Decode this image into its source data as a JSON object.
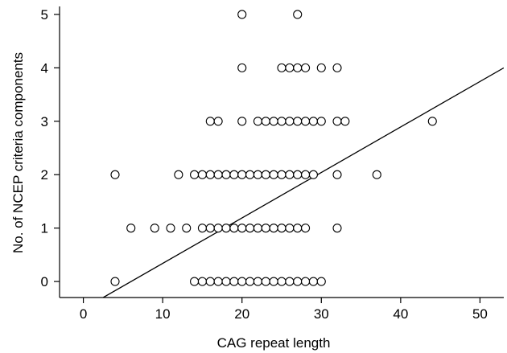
{
  "chart_data": {
    "type": "scatter",
    "title": "",
    "xlabel": "CAG repeat length",
    "ylabel": "No. of NCEP criteria components",
    "xlim": [
      -3,
      53
    ],
    "ylim": [
      -0.3,
      5.15
    ],
    "xticks": [
      0,
      10,
      20,
      30,
      40,
      50
    ],
    "yticks": [
      0,
      1,
      2,
      3,
      4,
      5
    ],
    "grid": false,
    "legend": "none",
    "marker": "open-circle",
    "points": [
      [
        4,
        0
      ],
      [
        14,
        0
      ],
      [
        15,
        0
      ],
      [
        16,
        0
      ],
      [
        17,
        0
      ],
      [
        18,
        0
      ],
      [
        19,
        0
      ],
      [
        20,
        0
      ],
      [
        21,
        0
      ],
      [
        22,
        0
      ],
      [
        23,
        0
      ],
      [
        24,
        0
      ],
      [
        25,
        0
      ],
      [
        26,
        0
      ],
      [
        27,
        0
      ],
      [
        28,
        0
      ],
      [
        29,
        0
      ],
      [
        30,
        0
      ],
      [
        6,
        1
      ],
      [
        9,
        1
      ],
      [
        11,
        1
      ],
      [
        13,
        1
      ],
      [
        15,
        1
      ],
      [
        16,
        1
      ],
      [
        17,
        1
      ],
      [
        18,
        1
      ],
      [
        19,
        1
      ],
      [
        20,
        1
      ],
      [
        21,
        1
      ],
      [
        22,
        1
      ],
      [
        23,
        1
      ],
      [
        24,
        1
      ],
      [
        25,
        1
      ],
      [
        26,
        1
      ],
      [
        27,
        1
      ],
      [
        28,
        1
      ],
      [
        32,
        1
      ],
      [
        4,
        2
      ],
      [
        12,
        2
      ],
      [
        14,
        2
      ],
      [
        15,
        2
      ],
      [
        16,
        2
      ],
      [
        17,
        2
      ],
      [
        18,
        2
      ],
      [
        19,
        2
      ],
      [
        20,
        2
      ],
      [
        21,
        2
      ],
      [
        22,
        2
      ],
      [
        23,
        2
      ],
      [
        24,
        2
      ],
      [
        25,
        2
      ],
      [
        26,
        2
      ],
      [
        27,
        2
      ],
      [
        28,
        2
      ],
      [
        29,
        2
      ],
      [
        32,
        2
      ],
      [
        37,
        2
      ],
      [
        16,
        3
      ],
      [
        17,
        3
      ],
      [
        20,
        3
      ],
      [
        22,
        3
      ],
      [
        23,
        3
      ],
      [
        24,
        3
      ],
      [
        25,
        3
      ],
      [
        26,
        3
      ],
      [
        27,
        3
      ],
      [
        28,
        3
      ],
      [
        29,
        3
      ],
      [
        30,
        3
      ],
      [
        32,
        3
      ],
      [
        33,
        3
      ],
      [
        44,
        3
      ],
      [
        20,
        4
      ],
      [
        25,
        4
      ],
      [
        26,
        4
      ],
      [
        27,
        4
      ],
      [
        28,
        4
      ],
      [
        30,
        4
      ],
      [
        32,
        4
      ],
      [
        20,
        5
      ],
      [
        27,
        5
      ]
    ],
    "regression_line": {
      "x": [
        2.5,
        53
      ],
      "y": [
        -0.3,
        4.0
      ]
    },
    "colors": {
      "axis": "#000000",
      "marker_stroke": "#000000",
      "marker_fill": "#ffffff",
      "line": "#000000"
    }
  }
}
